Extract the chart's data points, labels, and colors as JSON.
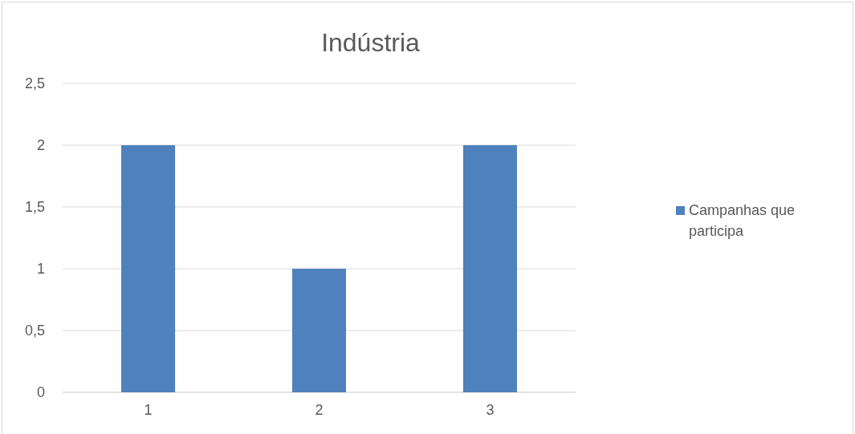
{
  "chart_data": {
    "type": "bar",
    "title": "Indústria",
    "categories": [
      "1",
      "2",
      "3"
    ],
    "series": [
      {
        "name": "Campanhas que participa",
        "color": "#4f81bd",
        "values": [
          2,
          1,
          2
        ]
      }
    ],
    "ylim": [
      0,
      2.5
    ],
    "yticks": [
      {
        "value": 0,
        "label": "0"
      },
      {
        "value": 0.5,
        "label": "0,5"
      },
      {
        "value": 1,
        "label": "1"
      },
      {
        "value": 1.5,
        "label": "1,5"
      },
      {
        "value": 2,
        "label": "2"
      },
      {
        "value": 2.5,
        "label": "2,5"
      }
    ],
    "grid": "y",
    "legend": "right"
  }
}
